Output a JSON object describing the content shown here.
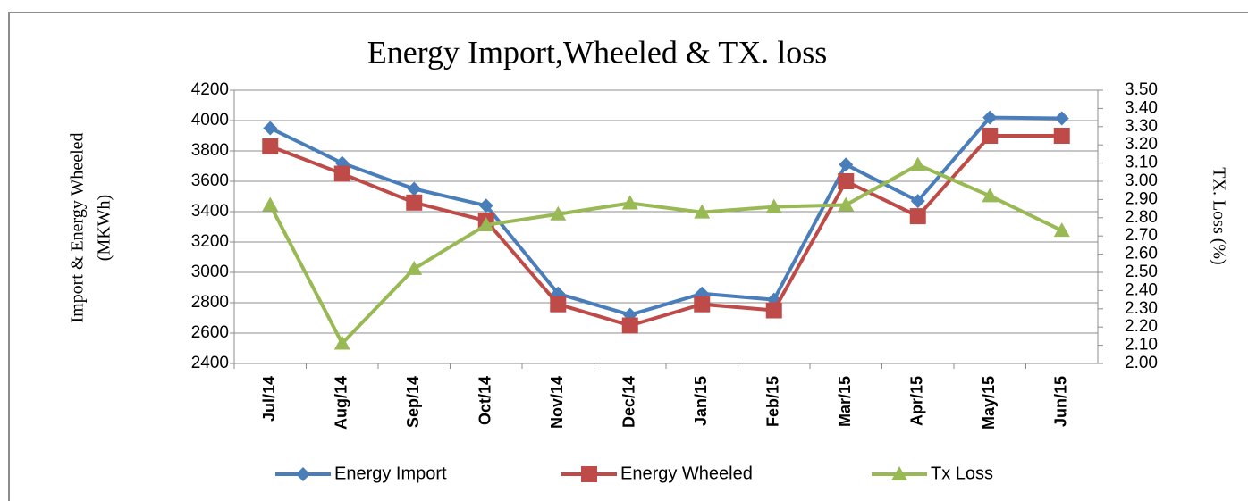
{
  "chart_data": {
    "type": "line",
    "title": "Energy Import,Wheeled & TX. loss",
    "y_label": [
      "Import &  Energy Wheeled",
      "(MKWh)"
    ],
    "y2_label": "TX. Loss (%)",
    "categories": [
      "Jul/14",
      "Aug/14",
      "Sep/14",
      "Oct/14",
      "Nov/14",
      "Dec/14",
      "Jan/15",
      "Feb/15",
      "Mar/15",
      "Apr/15",
      "May/15",
      "Jun/15"
    ],
    "series": [
      {
        "name": "Energy Import",
        "color": "#4a7ebb",
        "marker": "diamond",
        "values": [
          3950,
          3720,
          3550,
          3440,
          2860,
          2720,
          2860,
          2820,
          3710,
          3470,
          4020,
          4015
        ]
      },
      {
        "name": "Energy Wheeled",
        "color": "#be4b48",
        "marker": "square",
        "values": [
          3830,
          3650,
          3460,
          3340,
          2790,
          2650,
          2790,
          2750,
          3600,
          3370,
          3900,
          3900
        ]
      },
      {
        "name": "Tx Loss",
        "color": "#98b954",
        "marker": "triangle",
        "axis": "y2",
        "values": [
          2.87,
          2.11,
          2.52,
          2.76,
          2.82,
          2.88,
          2.83,
          2.86,
          2.87,
          3.09,
          2.92,
          2.73
        ]
      }
    ],
    "ylim": [
      2400,
      4200
    ],
    "yticks": [
      2400,
      2600,
      2800,
      3000,
      3200,
      3400,
      3600,
      3800,
      4000,
      4200
    ],
    "y2lim": [
      2.0,
      3.5
    ],
    "y2ticks": [
      {
        "value": 2.0,
        "label": "2.00"
      },
      {
        "value": 2.1,
        "label": "2.10"
      },
      {
        "value": 2.2,
        "label": "2.20"
      },
      {
        "value": 2.3,
        "label": "2.30"
      },
      {
        "value": 2.4,
        "label": "2.40"
      },
      {
        "value": 2.5,
        "label": "2.50"
      },
      {
        "value": 2.6,
        "label": "2.60"
      },
      {
        "value": 2.7,
        "label": "2.70"
      },
      {
        "value": 2.8,
        "label": "2.80"
      },
      {
        "value": 2.9,
        "label": "2.90"
      },
      {
        "value": 3.0,
        "label": "3.00"
      },
      {
        "value": 3.1,
        "label": "3.10"
      },
      {
        "value": 3.2,
        "label": "3.20"
      },
      {
        "value": 3.3,
        "label": "3.30"
      },
      {
        "value": 3.4,
        "label": "3.40"
      },
      {
        "value": 3.5,
        "label": "3.50"
      }
    ],
    "grid": true,
    "legend": "bottom"
  }
}
